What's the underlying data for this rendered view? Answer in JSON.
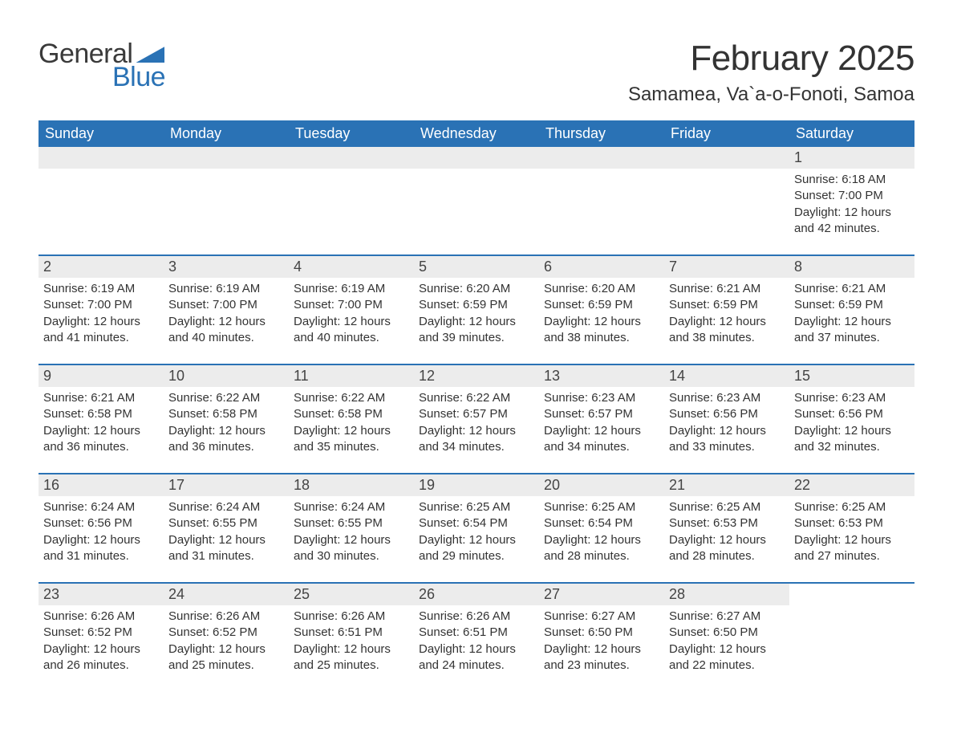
{
  "brand": {
    "word1": "General",
    "word2": "Blue",
    "accent_color": "#2a72b5"
  },
  "title": "February 2025",
  "location": "Samamea, Va`a-o-Fonoti, Samoa",
  "colors": {
    "header_bg": "#2a72b5",
    "day_band_bg": "#ececec",
    "text": "#333333",
    "divider": "#2a72b5"
  },
  "typography": {
    "title_fontsize": 44,
    "location_fontsize": 24,
    "dow_fontsize": 18,
    "daynum_fontsize": 18,
    "body_fontsize": 15
  },
  "calendar": {
    "days_of_week": [
      "Sunday",
      "Monday",
      "Tuesday",
      "Wednesday",
      "Thursday",
      "Friday",
      "Saturday"
    ],
    "first_weekday_index": 6,
    "weeks": [
      [
        null,
        null,
        null,
        null,
        null,
        null,
        {
          "n": "1",
          "sunrise": "Sunrise: 6:18 AM",
          "sunset": "Sunset: 7:00 PM",
          "dl1": "Daylight: 12 hours",
          "dl2": "and 42 minutes."
        }
      ],
      [
        {
          "n": "2",
          "sunrise": "Sunrise: 6:19 AM",
          "sunset": "Sunset: 7:00 PM",
          "dl1": "Daylight: 12 hours",
          "dl2": "and 41 minutes."
        },
        {
          "n": "3",
          "sunrise": "Sunrise: 6:19 AM",
          "sunset": "Sunset: 7:00 PM",
          "dl1": "Daylight: 12 hours",
          "dl2": "and 40 minutes."
        },
        {
          "n": "4",
          "sunrise": "Sunrise: 6:19 AM",
          "sunset": "Sunset: 7:00 PM",
          "dl1": "Daylight: 12 hours",
          "dl2": "and 40 minutes."
        },
        {
          "n": "5",
          "sunrise": "Sunrise: 6:20 AM",
          "sunset": "Sunset: 6:59 PM",
          "dl1": "Daylight: 12 hours",
          "dl2": "and 39 minutes."
        },
        {
          "n": "6",
          "sunrise": "Sunrise: 6:20 AM",
          "sunset": "Sunset: 6:59 PM",
          "dl1": "Daylight: 12 hours",
          "dl2": "and 38 minutes."
        },
        {
          "n": "7",
          "sunrise": "Sunrise: 6:21 AM",
          "sunset": "Sunset: 6:59 PM",
          "dl1": "Daylight: 12 hours",
          "dl2": "and 38 minutes."
        },
        {
          "n": "8",
          "sunrise": "Sunrise: 6:21 AM",
          "sunset": "Sunset: 6:59 PM",
          "dl1": "Daylight: 12 hours",
          "dl2": "and 37 minutes."
        }
      ],
      [
        {
          "n": "9",
          "sunrise": "Sunrise: 6:21 AM",
          "sunset": "Sunset: 6:58 PM",
          "dl1": "Daylight: 12 hours",
          "dl2": "and 36 minutes."
        },
        {
          "n": "10",
          "sunrise": "Sunrise: 6:22 AM",
          "sunset": "Sunset: 6:58 PM",
          "dl1": "Daylight: 12 hours",
          "dl2": "and 36 minutes."
        },
        {
          "n": "11",
          "sunrise": "Sunrise: 6:22 AM",
          "sunset": "Sunset: 6:58 PM",
          "dl1": "Daylight: 12 hours",
          "dl2": "and 35 minutes."
        },
        {
          "n": "12",
          "sunrise": "Sunrise: 6:22 AM",
          "sunset": "Sunset: 6:57 PM",
          "dl1": "Daylight: 12 hours",
          "dl2": "and 34 minutes."
        },
        {
          "n": "13",
          "sunrise": "Sunrise: 6:23 AM",
          "sunset": "Sunset: 6:57 PM",
          "dl1": "Daylight: 12 hours",
          "dl2": "and 34 minutes."
        },
        {
          "n": "14",
          "sunrise": "Sunrise: 6:23 AM",
          "sunset": "Sunset: 6:56 PM",
          "dl1": "Daylight: 12 hours",
          "dl2": "and 33 minutes."
        },
        {
          "n": "15",
          "sunrise": "Sunrise: 6:23 AM",
          "sunset": "Sunset: 6:56 PM",
          "dl1": "Daylight: 12 hours",
          "dl2": "and 32 minutes."
        }
      ],
      [
        {
          "n": "16",
          "sunrise": "Sunrise: 6:24 AM",
          "sunset": "Sunset: 6:56 PM",
          "dl1": "Daylight: 12 hours",
          "dl2": "and 31 minutes."
        },
        {
          "n": "17",
          "sunrise": "Sunrise: 6:24 AM",
          "sunset": "Sunset: 6:55 PM",
          "dl1": "Daylight: 12 hours",
          "dl2": "and 31 minutes."
        },
        {
          "n": "18",
          "sunrise": "Sunrise: 6:24 AM",
          "sunset": "Sunset: 6:55 PM",
          "dl1": "Daylight: 12 hours",
          "dl2": "and 30 minutes."
        },
        {
          "n": "19",
          "sunrise": "Sunrise: 6:25 AM",
          "sunset": "Sunset: 6:54 PM",
          "dl1": "Daylight: 12 hours",
          "dl2": "and 29 minutes."
        },
        {
          "n": "20",
          "sunrise": "Sunrise: 6:25 AM",
          "sunset": "Sunset: 6:54 PM",
          "dl1": "Daylight: 12 hours",
          "dl2": "and 28 minutes."
        },
        {
          "n": "21",
          "sunrise": "Sunrise: 6:25 AM",
          "sunset": "Sunset: 6:53 PM",
          "dl1": "Daylight: 12 hours",
          "dl2": "and 28 minutes."
        },
        {
          "n": "22",
          "sunrise": "Sunrise: 6:25 AM",
          "sunset": "Sunset: 6:53 PM",
          "dl1": "Daylight: 12 hours",
          "dl2": "and 27 minutes."
        }
      ],
      [
        {
          "n": "23",
          "sunrise": "Sunrise: 6:26 AM",
          "sunset": "Sunset: 6:52 PM",
          "dl1": "Daylight: 12 hours",
          "dl2": "and 26 minutes."
        },
        {
          "n": "24",
          "sunrise": "Sunrise: 6:26 AM",
          "sunset": "Sunset: 6:52 PM",
          "dl1": "Daylight: 12 hours",
          "dl2": "and 25 minutes."
        },
        {
          "n": "25",
          "sunrise": "Sunrise: 6:26 AM",
          "sunset": "Sunset: 6:51 PM",
          "dl1": "Daylight: 12 hours",
          "dl2": "and 25 minutes."
        },
        {
          "n": "26",
          "sunrise": "Sunrise: 6:26 AM",
          "sunset": "Sunset: 6:51 PM",
          "dl1": "Daylight: 12 hours",
          "dl2": "and 24 minutes."
        },
        {
          "n": "27",
          "sunrise": "Sunrise: 6:27 AM",
          "sunset": "Sunset: 6:50 PM",
          "dl1": "Daylight: 12 hours",
          "dl2": "and 23 minutes."
        },
        {
          "n": "28",
          "sunrise": "Sunrise: 6:27 AM",
          "sunset": "Sunset: 6:50 PM",
          "dl1": "Daylight: 12 hours",
          "dl2": "and 22 minutes."
        },
        null
      ]
    ]
  }
}
